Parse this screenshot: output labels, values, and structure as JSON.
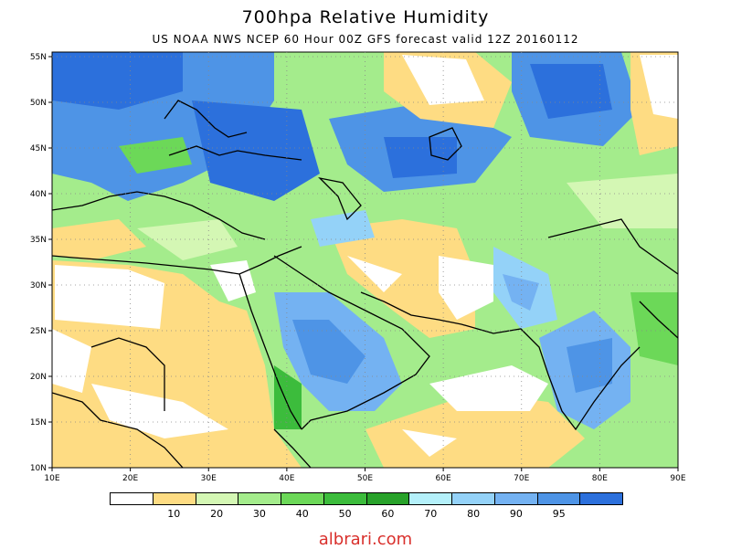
{
  "title": "700hpa Relative Humidity",
  "subtitle": "US NOAA NWS NCEP 60 Hour 00Z GFS forecast valid 12Z 20160112",
  "lon_labels": [
    "10E",
    "20E",
    "30E",
    "40E",
    "50E",
    "60E",
    "70E",
    "80E",
    "90E"
  ],
  "lat_labels": [
    "55N",
    "50N",
    "45N",
    "40N",
    "35N",
    "30N",
    "25N",
    "20N",
    "15N",
    "10N"
  ],
  "colorbar": {
    "colors": [
      "#ffffff",
      "#fedc83",
      "#d4f7b4",
      "#a4ec8c",
      "#6cd858",
      "#3cbc3c",
      "#28a22a",
      "#b4f0fa",
      "#94d2f8",
      "#74b2f2",
      "#4e94e6",
      "#2c70dc"
    ],
    "labels": [
      "10",
      "20",
      "30",
      "40",
      "50",
      "60",
      "70",
      "80",
      "90",
      "95"
    ]
  },
  "watermark": "albrari.com"
}
